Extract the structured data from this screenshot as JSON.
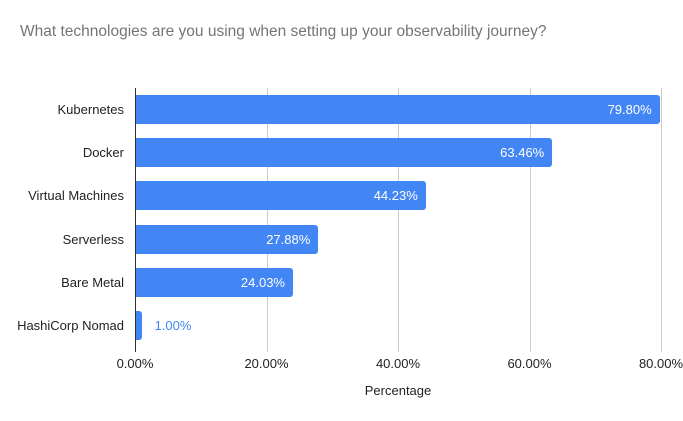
{
  "title": "What technologies are you using when setting up your observability journey?",
  "chart_data": {
    "type": "bar",
    "orientation": "horizontal",
    "title": "What technologies are you using when setting up your observability journey?",
    "categories": [
      "Kubernetes",
      "Docker",
      "Virtual Machines",
      "Serverless",
      "Bare Metal",
      "HashiCorp Nomad"
    ],
    "values": [
      79.8,
      63.46,
      44.23,
      27.88,
      24.03,
      1.0
    ],
    "value_labels": [
      "79.80%",
      "63.46%",
      "44.23%",
      "27.88%",
      "24.03%",
      "1.00%"
    ],
    "xlabel": "Percentage",
    "ylabel": "",
    "xlim": [
      0,
      80
    ],
    "x_tick_values": [
      0,
      20,
      40,
      60,
      80
    ],
    "x_tick_labels": [
      "0.00%",
      "20.00%",
      "40.00%",
      "60.00%",
      "80.00%"
    ],
    "grid": true,
    "legend": "none",
    "colors": {
      "bar": "#4285f4",
      "value_label_inside": "#ffffff",
      "value_label_outside": "#4285f4",
      "gridline": "#cccccc",
      "axis_line": "#333333",
      "axis_text": "#222222",
      "title_text": "#757575",
      "background": "#ffffff"
    }
  }
}
